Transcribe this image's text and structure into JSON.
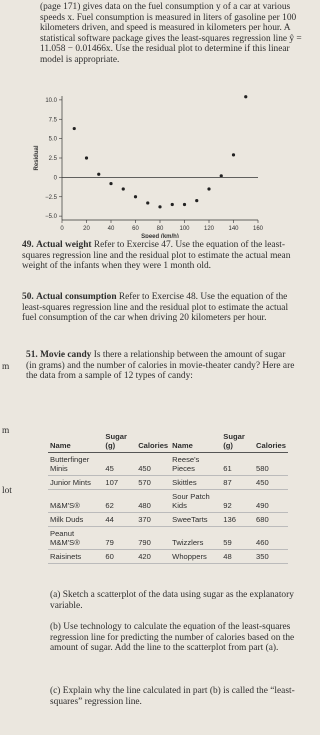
{
  "intro": "(page 171) gives data on the fuel consumption y of a car at various speeds x. Fuel consumption is measured in liters of gasoline per 100 kilometers driven, and speed is measured in kilometers per hour. A statistical software package gives the least-squares regression line ŷ = 11.058 − 0.01466x. Use the residual plot to determine if this linear model is appropriate.",
  "chart_data": {
    "type": "scatter",
    "xlabel": "Speed (km/h)",
    "ylabel": "Residual",
    "color": "#222",
    "x": [
      10,
      20,
      30,
      40,
      50,
      60,
      70,
      80,
      90,
      100,
      110,
      120,
      130,
      140,
      150
    ],
    "values": [
      6.3,
      2.5,
      0.4,
      -0.8,
      -1.5,
      -2.5,
      -3.3,
      -3.8,
      -3.5,
      -3.5,
      -3,
      -1.5,
      0.2,
      2.9,
      10.4
    ],
    "xlim": [
      0,
      160
    ],
    "xticks": [
      0,
      20,
      40,
      60,
      80,
      100,
      120,
      140,
      160
    ],
    "ylim": [
      -5.5,
      10.5
    ],
    "yticks": [
      {
        "value": 10,
        "label": "10.0"
      },
      {
        "value": 7.5,
        "label": "7.5"
      },
      {
        "value": 5,
        "label": "5.0"
      },
      {
        "value": 2.5,
        "label": "2.5"
      },
      0,
      {
        "value": -2.5,
        "label": "−2.5"
      },
      {
        "value": -5,
        "label": "−5.0"
      }
    ]
  },
  "exercises": [
    {
      "number": "49.",
      "title": "Actual weight",
      "text": "Refer to Exercise 47. Use the equation of the least-squares regression line and the residual plot to estimate the actual mean weight of the infants when they were 1 month old."
    },
    {
      "number": "50.",
      "title": "Actual consumption",
      "text": "Refer to Exercise 48. Use the equation of the least-squares regression line and the residual plot to estimate the actual fuel consumption of the car when driving 20 kilometers per hour."
    },
    {
      "number": "51.",
      "title": "Movie candy",
      "text": "Is there a relationship between the amount of sugar (in grams) and the number of calories in movie-theater candy? Here are the data from a sample of 12 types of candy:"
    }
  ],
  "margin": [
    "m",
    "m",
    "lot"
  ],
  "table": {
    "header": [
      "Name",
      "Sugar (g)",
      "Calories"
    ],
    "rows": [
      [
        "Butterfinger Minis",
        45,
        450,
        "Reese's Pieces",
        61,
        580
      ],
      [
        "Junior Mints",
        107,
        570,
        "Skittles",
        87,
        450
      ],
      [
        "M&M'S®",
        62,
        480,
        "Sour Patch Kids",
        92,
        490
      ],
      [
        "Milk Duds",
        44,
        370,
        "SweeTarts",
        136,
        680
      ],
      [
        "Peanut M&M'S®",
        79,
        790,
        "Twizzlers",
        59,
        460
      ],
      [
        "Raisinets",
        60,
        420,
        "Whoppers",
        48,
        350
      ]
    ]
  },
  "parts": [
    {
      "label": "(a)",
      "text": "Sketch a scatterplot of the data using sugar as the explanatory variable."
    },
    {
      "label": "(b)",
      "text": "Use technology to calculate the equation of the least-squares regression line for predicting the number of calories based on the amount of sugar. Add the line to the scatterplot from part (a)."
    },
    {
      "label": "(c)",
      "text": "Explain why the line calculated in part (b) is called the “least-squares” regression line."
    }
  ]
}
